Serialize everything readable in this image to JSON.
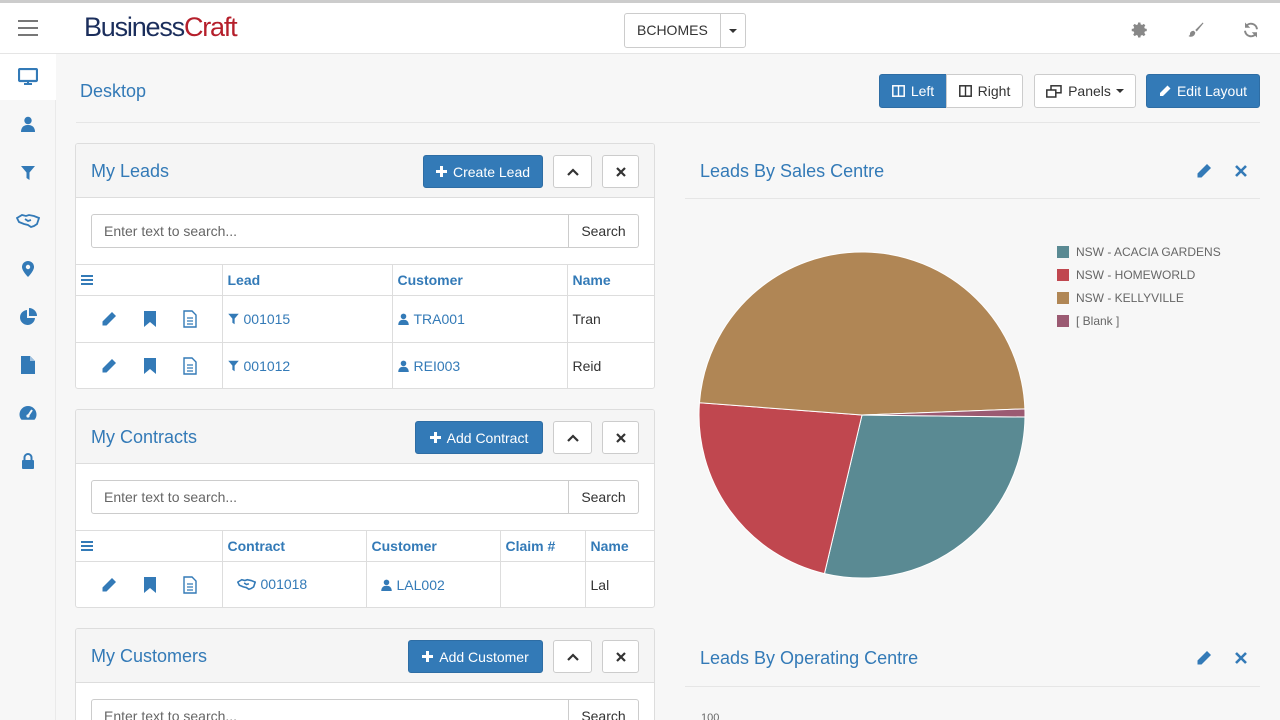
{
  "header": {
    "logo_part1": "Business",
    "logo_part2": "Craft",
    "company": "BCHOMES"
  },
  "page": {
    "title": "Desktop"
  },
  "toolbar": {
    "left_label": "Left",
    "right_label": "Right",
    "panels_label": "Panels",
    "edit_layout_label": "Edit Layout"
  },
  "leads": {
    "title": "My Leads",
    "create_label": "Create Lead",
    "search_placeholder": "Enter text to search...",
    "search_label": "Search",
    "columns": [
      "Lead",
      "Customer",
      "Name"
    ],
    "rows": [
      {
        "lead": "001015",
        "customer": "TRA001",
        "name": "Tran"
      },
      {
        "lead": "001012",
        "customer": "REI003",
        "name": "Reid"
      }
    ]
  },
  "contracts": {
    "title": "My Contracts",
    "add_label": "Add Contract",
    "search_placeholder": "Enter text to search...",
    "search_label": "Search",
    "columns": [
      "Contract",
      "Customer",
      "Claim #",
      "Name"
    ],
    "rows": [
      {
        "contract": "001018",
        "customer": "LAL002",
        "claim": "",
        "name": "Lal"
      }
    ]
  },
  "customers": {
    "title": "My Customers",
    "add_label": "Add Customer",
    "search_placeholder": "Enter text to search...",
    "search_label": "Search"
  },
  "chart_data": [
    {
      "type": "pie",
      "title": "Leads By Sales Centre",
      "legend_position": "right",
      "categories": [
        "NSW - ACACIA GARDENS",
        "NSW - HOMEWORLD",
        "NSW - KELLYVILLE",
        "[ Blank ]"
      ],
      "values": [
        28.5,
        22.5,
        48.2,
        0.8
      ],
      "colors": [
        "#5a8a93",
        "#c0474f",
        "#b08655",
        "#9b5a72"
      ]
    },
    {
      "type": "bar",
      "title": "Leads By Operating Centre",
      "yticks": [
        "100"
      ]
    }
  ]
}
